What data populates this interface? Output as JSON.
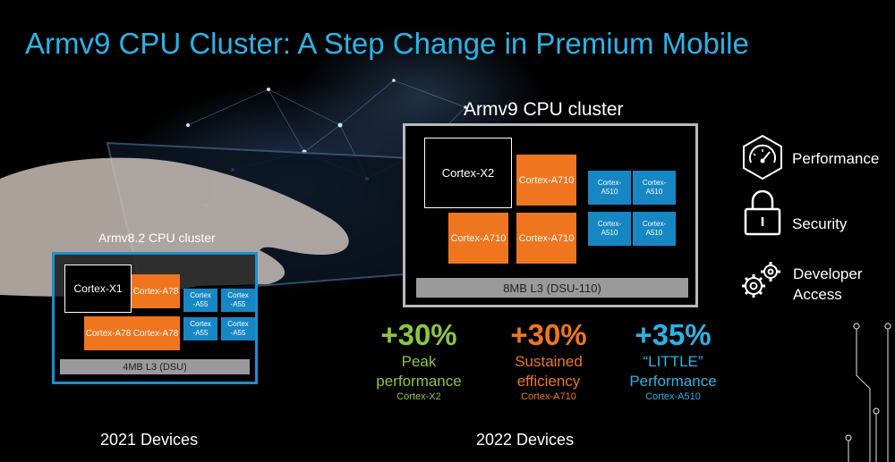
{
  "slide": {
    "title": "Armv9 CPU Cluster: A Step Change in Premium Mobile"
  },
  "cluster_2021": {
    "heading": "Armv8.2 CPU cluster",
    "big_core": "Cortex-X1",
    "mid_cores": [
      "Cortex-A78",
      "Cortex-A78",
      "Cortex-A78"
    ],
    "little_cores": [
      "Cortex\n-A55",
      "Cortex\n-A55",
      "Cortex\n-A55",
      "Cortex\n-A55"
    ],
    "l3": "4MB L3 (DSU)",
    "devices_label": "2021 Devices"
  },
  "cluster_2022": {
    "heading": "Armv9 CPU cluster",
    "big_core": "Cortex-X2",
    "mid_cores": [
      "Cortex-A710",
      "Cortex-A710",
      "Cortex-A710"
    ],
    "little_cores": [
      "Cortex-\nA510",
      "Cortex-\nA510",
      "Cortex-\nA510",
      "Cortex-\nA510"
    ],
    "l3": "8MB L3 (DSU-110)",
    "devices_label": "2022 Devices"
  },
  "stats": [
    {
      "pct": "+30%",
      "label": "Peak\nperformance",
      "sub": "Cortex-X2",
      "color": "#8cc63f"
    },
    {
      "pct": "+30%",
      "label": "Sustained\nefficiency",
      "sub": "Cortex-A710",
      "color": "#f0751f"
    },
    {
      "pct": "+35%",
      "label": "“LITTLE”\nPerformance",
      "sub": "Cortex-A510",
      "color": "#2bb3e6"
    }
  ],
  "features": [
    {
      "icon": "speedometer-icon",
      "label": "Performance"
    },
    {
      "icon": "lock-icon",
      "label": "Security"
    },
    {
      "icon": "gears-icon",
      "label": "Developer\nAccess"
    }
  ],
  "colors": {
    "title": "#2bb3e6",
    "big_core": "#000000",
    "mid_core": "#f0751f",
    "little_core": "#1787c4",
    "l3": "#9a9a9e",
    "cluster_2021_border": "#1b8fd0"
  }
}
